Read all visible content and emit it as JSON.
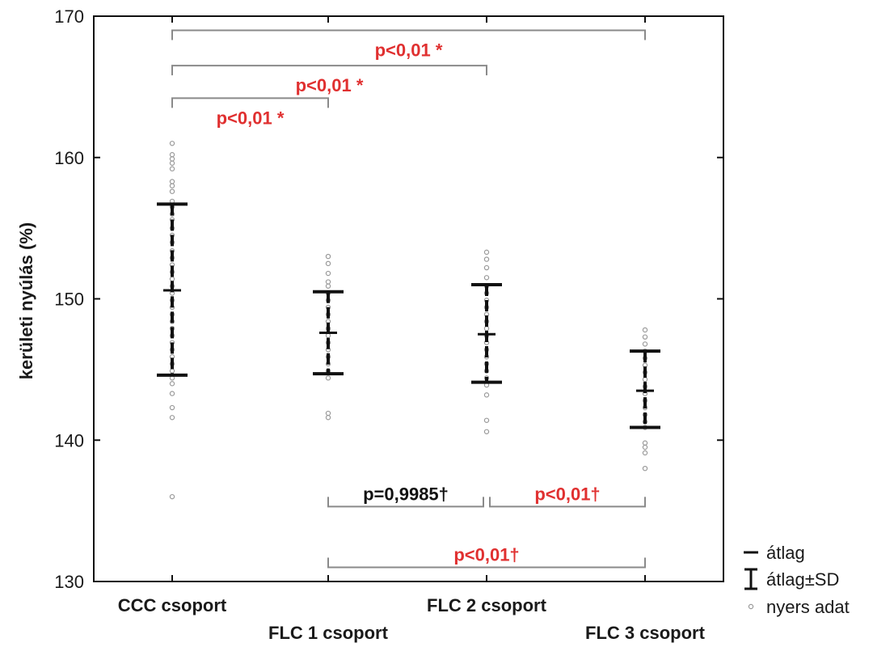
{
  "chart_data": {
    "type": "scatter",
    "ylabel": "kerületi nyúlás (%)",
    "xlabel": "",
    "ylim": [
      130,
      170
    ],
    "yticks": [
      130,
      140,
      150,
      160,
      170
    ],
    "grid": false,
    "legend_position": "bottom-right",
    "categories": [
      "CCC csoport",
      "FLC 1 csoport",
      "FLC 2 csoport",
      "FLC 3 csoport"
    ],
    "groups": [
      {
        "name": "CCC csoport",
        "mean": 150.6,
        "mean_minus_sd": 144.6,
        "mean_plus_sd": 156.7,
        "raw": [
          161.0,
          160.2,
          159.9,
          159.6,
          159.2,
          158.3,
          158.0,
          157.6,
          156.9,
          156.5,
          156.0,
          155.6,
          155.0,
          154.5,
          154.0,
          153.4,
          152.9,
          152.4,
          151.9,
          151.4,
          150.9,
          150.4,
          149.9,
          149.4,
          148.9,
          148.4,
          147.9,
          147.4,
          146.9,
          146.4,
          145.9,
          145.4,
          144.9,
          144.4,
          144.0,
          143.3,
          142.3,
          141.6,
          136.0
        ]
      },
      {
        "name": "FLC 1 csoport",
        "mean": 147.6,
        "mean_minus_sd": 144.7,
        "mean_plus_sd": 150.5,
        "raw": [
          153.0,
          152.5,
          151.8,
          151.2,
          150.9,
          150.4,
          149.9,
          149.4,
          148.9,
          148.4,
          147.9,
          147.4,
          146.9,
          146.4,
          145.9,
          145.4,
          144.9,
          144.4,
          141.9,
          141.6
        ]
      },
      {
        "name": "FLC 2 csoport",
        "mean": 147.5,
        "mean_minus_sd": 144.1,
        "mean_plus_sd": 151.0,
        "raw": [
          153.3,
          152.8,
          152.2,
          151.5,
          150.9,
          150.4,
          149.9,
          149.4,
          148.9,
          148.4,
          147.9,
          147.4,
          146.9,
          146.4,
          145.9,
          145.4,
          144.9,
          144.4,
          143.9,
          143.2,
          141.4,
          140.6
        ]
      },
      {
        "name": "FLC 3 csoport",
        "mean": 143.5,
        "mean_minus_sd": 140.9,
        "mean_plus_sd": 146.3,
        "raw": [
          147.8,
          147.3,
          146.8,
          146.3,
          145.8,
          145.3,
          144.8,
          144.3,
          143.8,
          143.3,
          142.8,
          142.3,
          141.8,
          141.3,
          140.9,
          139.8,
          139.5,
          139.1,
          138.0
        ]
      }
    ],
    "brackets": [
      {
        "from": 0,
        "to": 3,
        "level": 169.0,
        "side": "top",
        "label": "p<0,01 *",
        "color": "#e03030"
      },
      {
        "from": 0,
        "to": 2,
        "level": 166.5,
        "side": "top",
        "label": "p<0,01 *",
        "color": "#e03030"
      },
      {
        "from": 0,
        "to": 1,
        "level": 164.2,
        "side": "top",
        "label": "p<0,01 *",
        "color": "#e03030"
      },
      {
        "from": 1,
        "to": 2,
        "level": 135.3,
        "side": "bottom",
        "label": "p=0,9985†",
        "color": "#111111"
      },
      {
        "from": 2,
        "to": 3,
        "level": 135.3,
        "side": "bottom",
        "label": "p<0,01†",
        "color": "#e03030"
      },
      {
        "from": 1,
        "to": 3,
        "level": 131.0,
        "side": "bottom",
        "label": "p<0,01†",
        "color": "#e03030"
      }
    ],
    "legend": [
      {
        "symbol": "mean-line",
        "label": "átlag"
      },
      {
        "symbol": "error-bar",
        "label": "átlag±SD"
      },
      {
        "symbol": "circle",
        "label": "nyers adat"
      }
    ],
    "colors": {
      "significant": "#e03030",
      "nonsignificant": "#111111",
      "raw_points": "#9a9a9a",
      "bracket_line": "#8a8a8a"
    }
  }
}
